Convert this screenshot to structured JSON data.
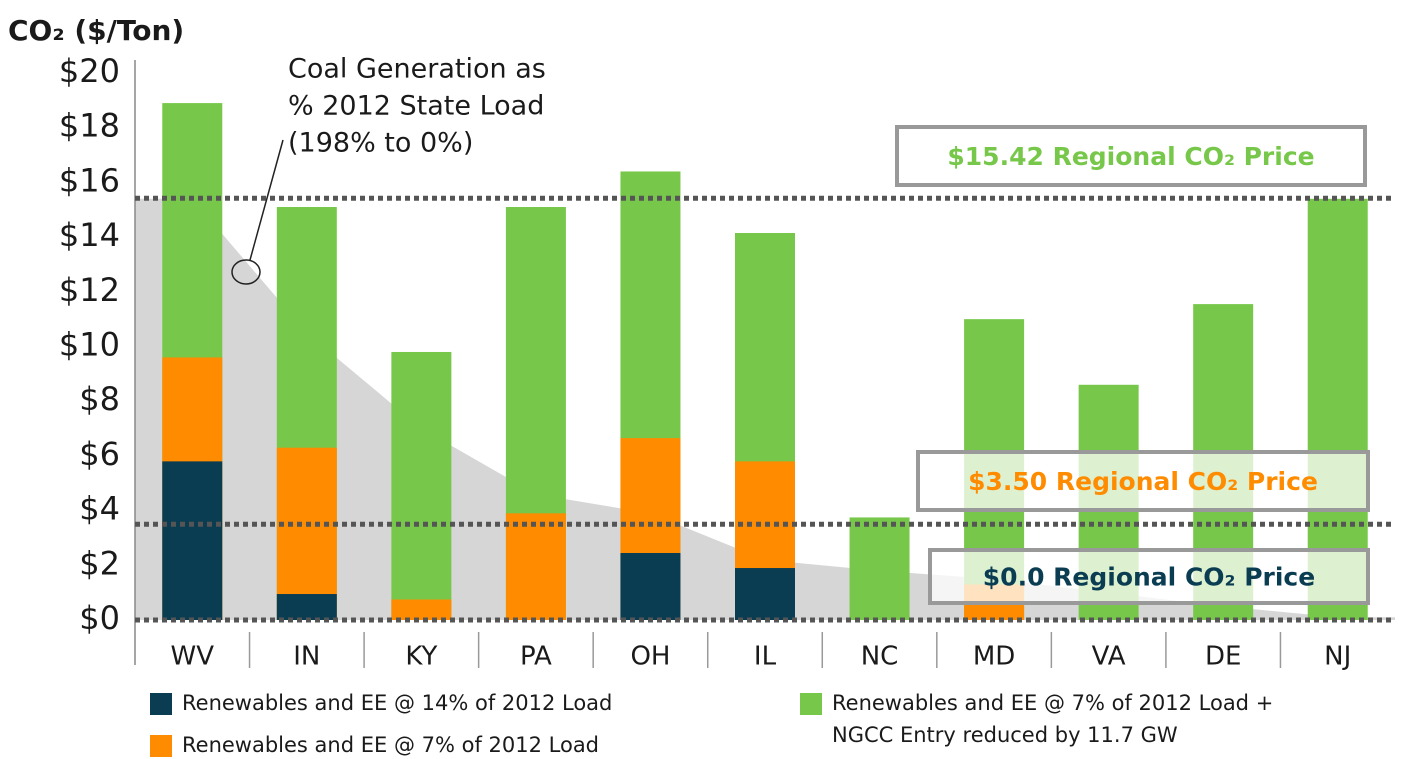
{
  "chart_data": {
    "type": "bar",
    "title": "CO₂ ($/Ton)",
    "categories": [
      "WV",
      "IN",
      "KY",
      "PA",
      "OH",
      "IL",
      "NC",
      "MD",
      "VA",
      "DE",
      "NJ"
    ],
    "series": [
      {
        "name": [
          "Renewables and EE @ 7% of 2012 Load +",
          "NGCC Entry reduced by 11.7 GW"
        ],
        "color": "#77c84a",
        "values": [
          18.9,
          15.1,
          9.8,
          15.1,
          16.4,
          14.15,
          3.75,
          11.0,
          8.6,
          11.55,
          15.4
        ]
      },
      {
        "name": "Renewables and EE @ 7% of 2012 Load",
        "color": "#ff8c00",
        "values": [
          9.6,
          6.3,
          0.75,
          3.9,
          6.65,
          5.8,
          null,
          1.3,
          null,
          null,
          null
        ]
      },
      {
        "name": "Renewables and EE @ 14% of 2012 Load",
        "color": "#0b3d52",
        "values": [
          5.8,
          0.95,
          null,
          null,
          2.45,
          1.9,
          null,
          null,
          null,
          null,
          null
        ]
      }
    ],
    "coal_area": {
      "color": "#d6d6d6",
      "values": [
        15.4,
        10.5,
        7.0,
        4.6,
        3.9,
        2.2,
        1.8,
        1.5,
        1.0,
        0.5,
        0.1
      ]
    },
    "annotation": [
      "Coal Generation as",
      "% 2012 State Load",
      "(198% to 0%)"
    ],
    "reference_lines": [
      {
        "value": 15.42,
        "label": "$15.42 Regional CO₂ Price",
        "color": "#77c84a"
      },
      {
        "value": 3.5,
        "label": "$3.50 Regional CO₂ Price",
        "color": "#ff8c00"
      },
      {
        "value": 0,
        "label": "$0.0 Regional CO₂ Price",
        "color": "#0b3d52"
      }
    ],
    "ylim": [
      0,
      20
    ],
    "yticks": [
      {
        "value": 0,
        "label": "$0"
      },
      {
        "value": 2,
        "label": "$2"
      },
      {
        "value": 4,
        "label": "$4"
      },
      {
        "value": 6,
        "label": "$6"
      },
      {
        "value": 8,
        "label": "$8"
      },
      {
        "value": 10,
        "label": "$10"
      },
      {
        "value": 12,
        "label": "$12"
      },
      {
        "value": 14,
        "label": "$14"
      },
      {
        "value": 16,
        "label": "$16"
      },
      {
        "value": 18,
        "label": "$18"
      },
      {
        "value": 20,
        "label": "$20"
      }
    ]
  }
}
